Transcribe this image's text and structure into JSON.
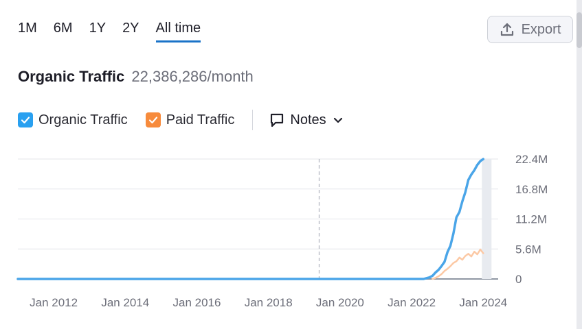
{
  "tabs": [
    {
      "label": "1M",
      "active": false
    },
    {
      "label": "6M",
      "active": false
    },
    {
      "label": "1Y",
      "active": false
    },
    {
      "label": "2Y",
      "active": false
    },
    {
      "label": "All time",
      "active": true
    }
  ],
  "export": {
    "label": "Export",
    "icon": "upload-icon"
  },
  "headline": {
    "metric": "Organic Traffic",
    "value": "22,386,286/month"
  },
  "legend": {
    "organic": {
      "label": "Organic Traffic",
      "color": "#29a0f0",
      "checked": true
    },
    "paid": {
      "label": "Paid Traffic",
      "color": "#f78b3c",
      "checked": true
    },
    "notes": {
      "label": "Notes",
      "icon": "note-icon",
      "chevron": "chevron-down-icon"
    }
  },
  "chart_data": {
    "type": "line",
    "ylim": [
      0,
      22400000
    ],
    "y_ticks": [
      {
        "value": 0,
        "label": "0"
      },
      {
        "value": 5600000,
        "label": "5.6M"
      },
      {
        "value": 11200000,
        "label": "11.2M"
      },
      {
        "value": 16800000,
        "label": "16.8M"
      },
      {
        "value": 22400000,
        "label": "22.4M"
      }
    ],
    "xlim": [
      "2011-01",
      "2024-06"
    ],
    "x_ticks": [
      {
        "value": "2012-01",
        "label": "Jan 2012"
      },
      {
        "value": "2014-01",
        "label": "Jan 2014"
      },
      {
        "value": "2016-01",
        "label": "Jan 2016"
      },
      {
        "value": "2018-01",
        "label": "Jan 2018"
      },
      {
        "value": "2020-01",
        "label": "Jan 2020"
      },
      {
        "value": "2022-01",
        "label": "Jan 2022"
      },
      {
        "value": "2024-01",
        "label": "Jan 2024"
      }
    ],
    "marker_line": "2019-06",
    "grid": true,
    "series": [
      {
        "name": "Organic Traffic",
        "color": "#4aa5e8",
        "points": [
          [
            "2011-01",
            0
          ],
          [
            "2022-05",
            0
          ],
          [
            "2022-06",
            150000
          ],
          [
            "2022-07",
            300000
          ],
          [
            "2022-08",
            600000
          ],
          [
            "2022-09",
            1200000
          ],
          [
            "2022-10",
            1700000
          ],
          [
            "2022-11",
            2400000
          ],
          [
            "2022-12",
            3200000
          ],
          [
            "2023-01",
            5000000
          ],
          [
            "2023-02",
            6200000
          ],
          [
            "2023-03",
            8500000
          ],
          [
            "2023-04",
            11500000
          ],
          [
            "2023-05",
            12500000
          ],
          [
            "2023-06",
            14500000
          ],
          [
            "2023-07",
            16200000
          ],
          [
            "2023-08",
            18500000
          ],
          [
            "2023-09",
            19500000
          ],
          [
            "2023-10",
            20300000
          ],
          [
            "2023-11",
            21300000
          ],
          [
            "2023-12",
            22000000
          ],
          [
            "2024-01",
            22386286
          ]
        ]
      },
      {
        "name": "Paid Traffic",
        "color": "#fcc9a5",
        "points": [
          [
            "2022-08",
            0
          ],
          [
            "2022-09",
            200000
          ],
          [
            "2022-10",
            500000
          ],
          [
            "2022-11",
            900000
          ],
          [
            "2022-12",
            1500000
          ],
          [
            "2023-01",
            1900000
          ],
          [
            "2023-02",
            2400000
          ],
          [
            "2023-03",
            3000000
          ],
          [
            "2023-04",
            3300000
          ],
          [
            "2023-05",
            4000000
          ],
          [
            "2023-06",
            3600000
          ],
          [
            "2023-07",
            4300000
          ],
          [
            "2023-08",
            4700000
          ],
          [
            "2023-09",
            4200000
          ],
          [
            "2023-10",
            5100000
          ],
          [
            "2023-11",
            4600000
          ],
          [
            "2023-12",
            5500000
          ],
          [
            "2024-01",
            4800000
          ]
        ]
      }
    ]
  }
}
